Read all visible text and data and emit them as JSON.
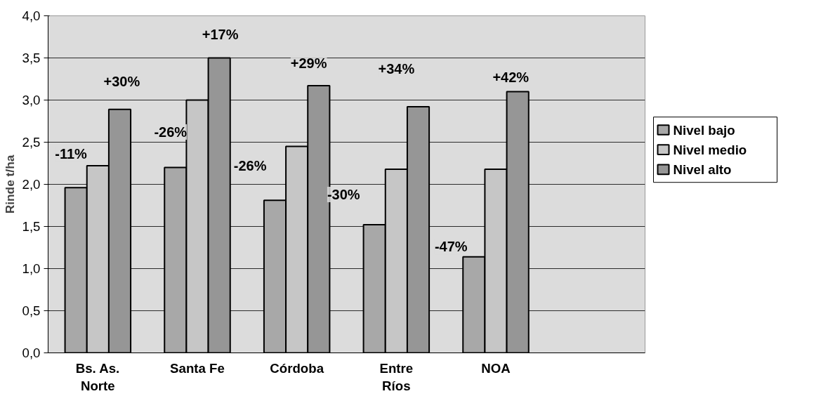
{
  "chart_data": {
    "type": "bar",
    "ylabel": "Rinde t/ha",
    "categories": [
      "Bs. As. Norte",
      "Santa Fe",
      "Córdoba",
      "Entre Ríos",
      "NOA",
      null
    ],
    "series": [
      {
        "name": "Nivel bajo",
        "color": "#a8a8a8",
        "values": [
          1.96,
          2.2,
          1.81,
          1.52,
          1.14,
          null
        ]
      },
      {
        "name": "Nivel medio",
        "color": "#c6c6c6",
        "values": [
          2.22,
          3.0,
          2.45,
          2.18,
          2.18,
          null
        ]
      },
      {
        "name": "Nivel alto",
        "color": "#969696",
        "values": [
          2.89,
          3.5,
          3.17,
          2.92,
          3.1,
          null
        ]
      }
    ],
    "ylim": [
      0,
      4
    ],
    "yticks": [
      {
        "value": 0,
        "label": "0,0"
      },
      {
        "value": 0.5,
        "label": "0,5"
      },
      {
        "value": 1,
        "label": "1,0"
      },
      {
        "value": 1.5,
        "label": "1,5"
      },
      {
        "value": 2,
        "label": "2,0"
      },
      {
        "value": 2.5,
        "label": "2,5"
      },
      {
        "value": 3,
        "label": "3,0"
      },
      {
        "value": 3.5,
        "label": "3,5"
      },
      {
        "value": 4,
        "label": "4,0"
      }
    ],
    "grid": "y",
    "legend": "right",
    "annotations": [
      "-11%",
      "+30%",
      "-26%",
      "+17%",
      "-26%",
      "+29%",
      "-30%",
      "+34%",
      "-47%",
      "+42%"
    ]
  }
}
